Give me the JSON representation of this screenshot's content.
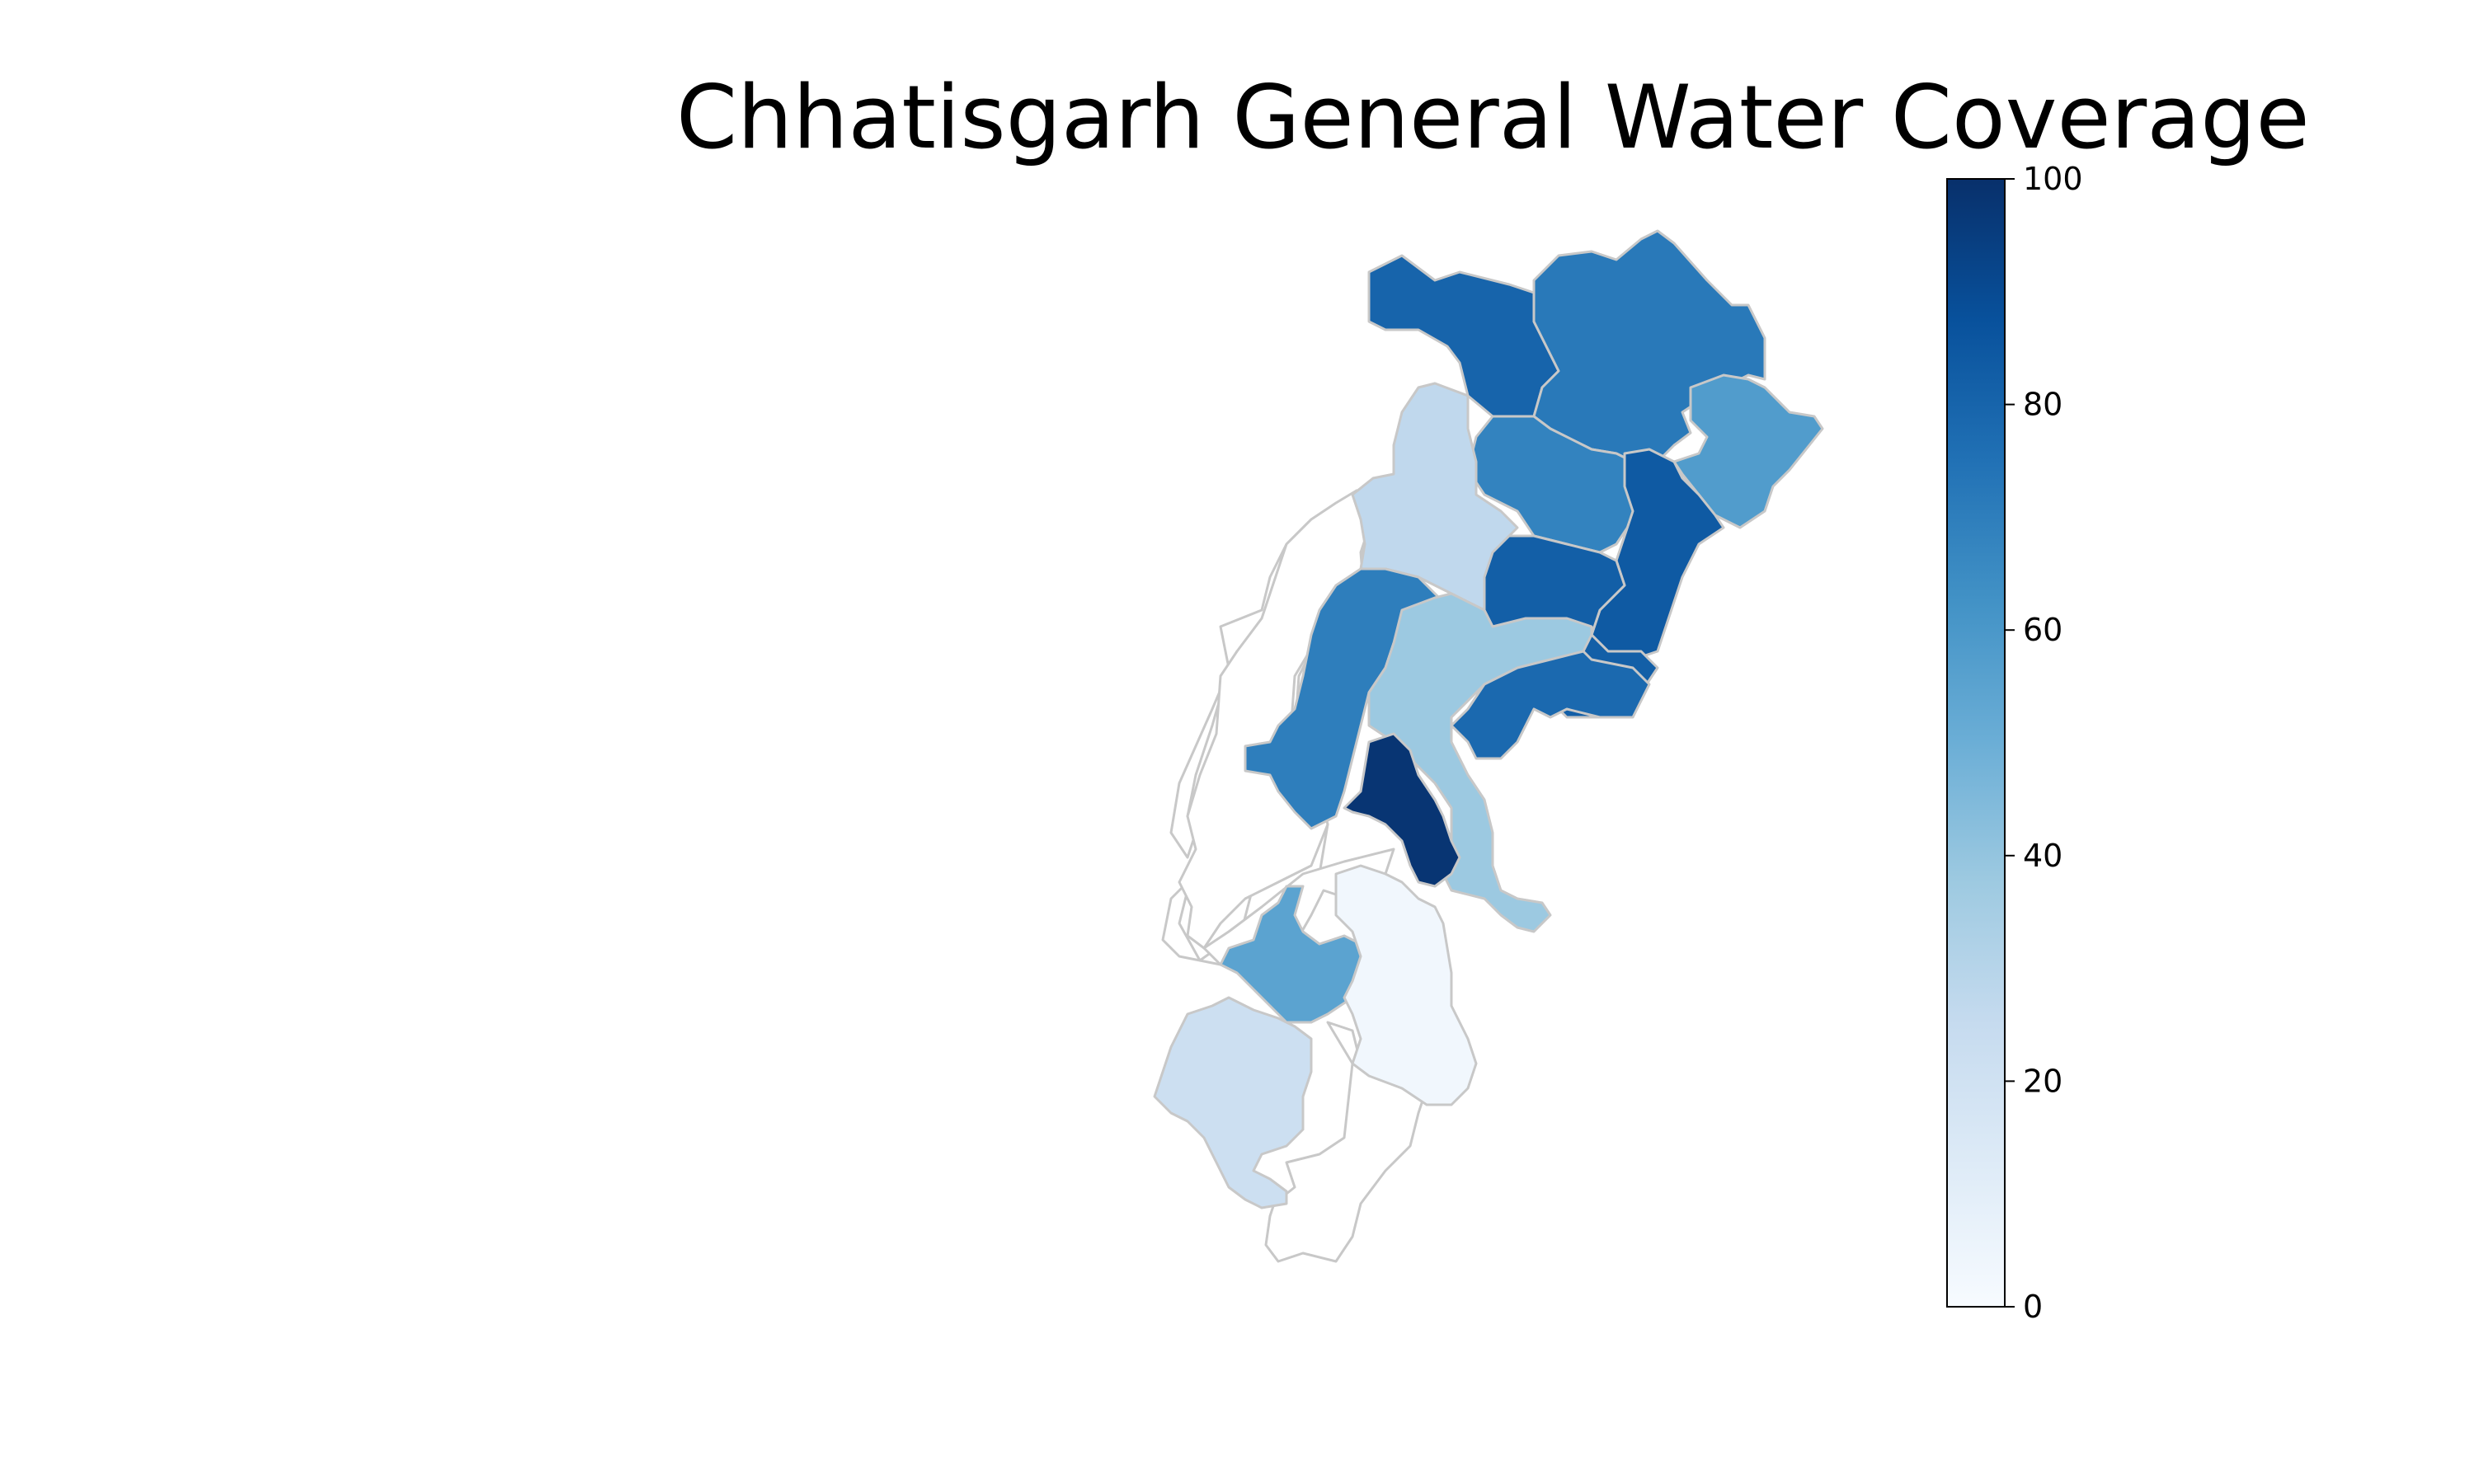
{
  "chart_data": {
    "type": "choropleth",
    "title": "Chhatisgarh General Water Coverage",
    "colormap": "Blues",
    "colorbar": {
      "min": 0,
      "max": 100,
      "ticks": [
        "0",
        "20",
        "40",
        "60",
        "80",
        "100"
      ]
    },
    "border_color": "#c8c8c8",
    "no_data_color": "#ffffff",
    "regions": [
      {
        "id": "north-west",
        "value": 80
      },
      {
        "id": "north-central",
        "value": 72
      },
      {
        "id": "north-east",
        "value": 58
      },
      {
        "id": "upper-central",
        "value": 68
      },
      {
        "id": "east-band",
        "value": 84
      },
      {
        "id": "central-east",
        "value": 82
      },
      {
        "id": "north-upper-west",
        "value": 27
      },
      {
        "id": "central-west",
        "value": 70
      },
      {
        "id": "central-corridor",
        "value": 38
      },
      {
        "id": "lower-east",
        "value": 78
      },
      {
        "id": "lower-central",
        "value": 98
      },
      {
        "id": "south-west-mid",
        "value": 55
      },
      {
        "id": "south-central",
        "value": 3
      },
      {
        "id": "south-west",
        "value": 22
      },
      {
        "id": "western-band",
        "value": null
      },
      {
        "id": "south-mid-west",
        "value": null
      },
      {
        "id": "southernmost",
        "value": null
      }
    ]
  }
}
